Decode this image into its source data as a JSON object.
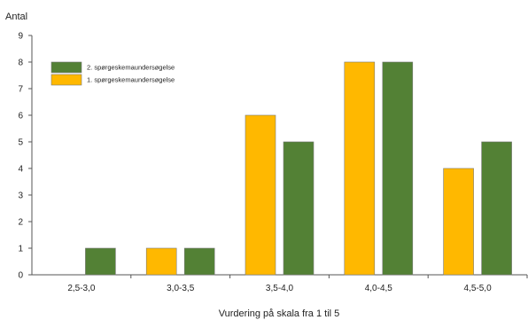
{
  "chart_data": {
    "type": "bar",
    "title": "",
    "ylabel": "Antal",
    "xlabel": "Vurdering på skala fra 1 til 5",
    "ylim": [
      0,
      9
    ],
    "yticks": [
      0,
      1,
      2,
      3,
      4,
      5,
      6,
      7,
      8,
      9
    ],
    "grid": false,
    "legend_position": "top-left",
    "categories": [
      "2,5-3,0",
      "3,0-3,5",
      "3,5-4,0",
      "4,0-4,5",
      "4,5-5,0"
    ],
    "series": [
      {
        "name": "1. spørgeskemaundersøgelse",
        "values": [
          0,
          1,
          6,
          8,
          4
        ],
        "color": "#FFB800"
      },
      {
        "name": "2. spørgeskemaundersøgelse",
        "values": [
          1,
          1,
          5,
          8,
          5
        ],
        "color": "#538135"
      }
    ],
    "legend_order": [
      1,
      0
    ]
  }
}
